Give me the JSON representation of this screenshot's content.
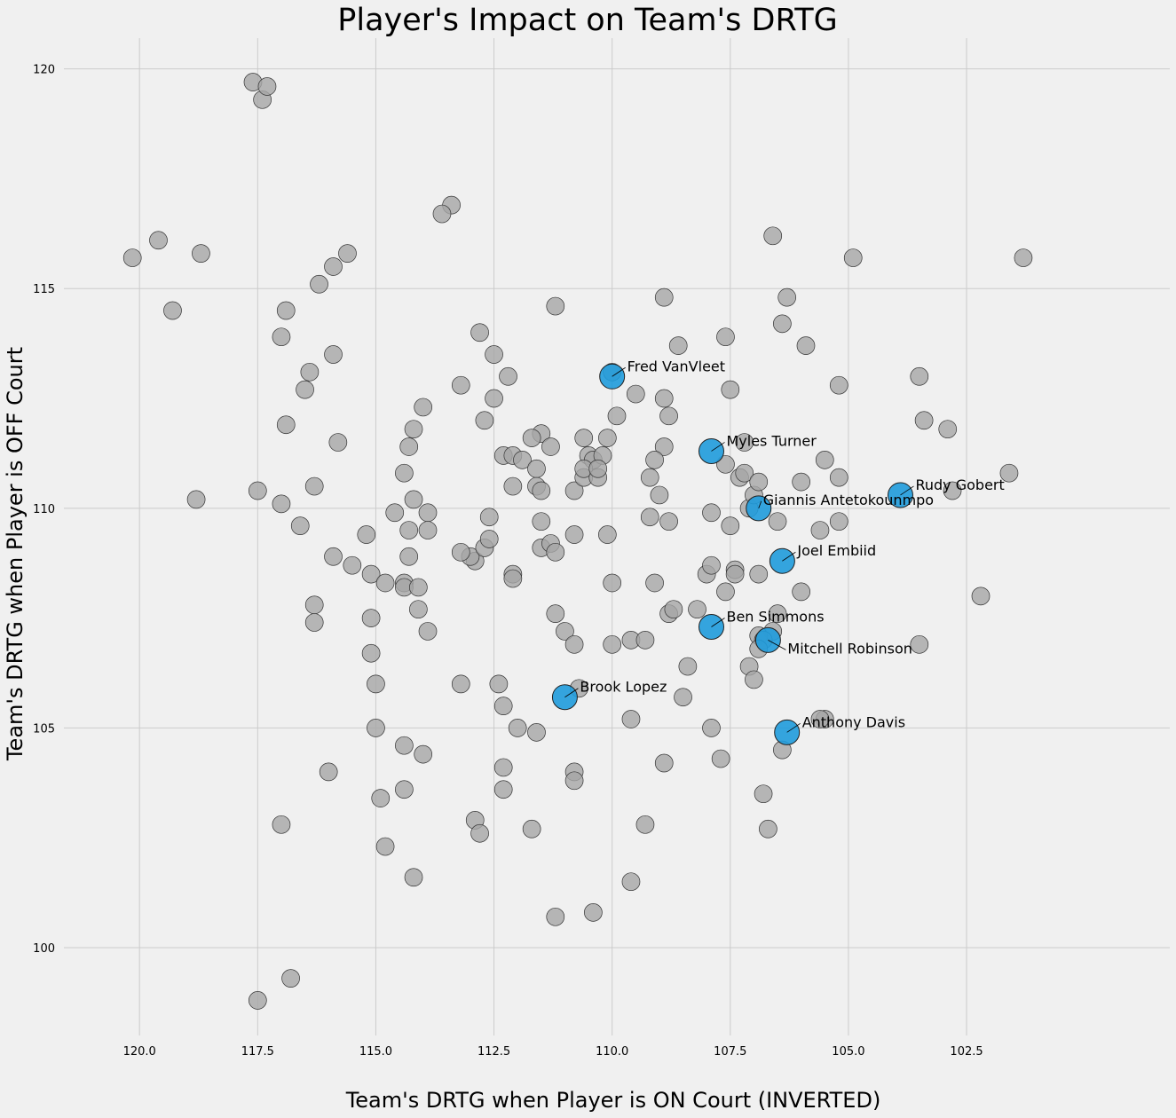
{
  "chart_data": {
    "type": "scatter",
    "title": "Player's Impact on Team's DRTG",
    "xlabel": "Team's DRTG when Player is ON Court (INVERTED)",
    "ylabel": "Team's DRTG when Player is OFF Court",
    "xlim": [
      121.6,
      98.2
    ],
    "ylim": [
      98.0,
      120.7
    ],
    "x_inverted": true,
    "grid": true,
    "xticks": [
      120.0,
      117.5,
      115.0,
      112.5,
      110.0,
      107.5,
      105.0,
      102.5
    ],
    "xtick_labels": [
      "120.0",
      "117.5",
      "115.0",
      "112.5",
      "110.0",
      "107.5",
      "105.0",
      "102.5"
    ],
    "yticks": [
      100,
      105,
      110,
      115,
      120
    ],
    "ytick_labels": [
      "100",
      "105",
      "110",
      "115",
      "120"
    ],
    "colors": {
      "other_players": "#a6a6a6",
      "highlighted_players": "#1f9bdc",
      "background": "#f0f0f0"
    },
    "series": [
      {
        "points": [
          [
            120.15,
            115.7
          ],
          [
            119.6,
            116.1
          ],
          [
            119.3,
            114.5
          ],
          [
            118.7,
            115.8
          ],
          [
            118.8,
            110.2
          ],
          [
            117.6,
            119.7
          ],
          [
            117.4,
            119.3
          ],
          [
            117.3,
            119.6
          ],
          [
            117.0,
            113.9
          ],
          [
            116.9,
            114.5
          ],
          [
            117.0,
            110.1
          ],
          [
            116.9,
            111.9
          ],
          [
            117.5,
            110.4
          ],
          [
            116.5,
            112.7
          ],
          [
            116.4,
            113.1
          ],
          [
            116.2,
            115.1
          ],
          [
            115.9,
            113.5
          ],
          [
            115.9,
            115.5
          ],
          [
            115.6,
            115.8
          ],
          [
            115.8,
            111.5
          ],
          [
            116.3,
            110.5
          ],
          [
            116.6,
            109.6
          ],
          [
            116.3,
            107.8
          ],
          [
            116.3,
            107.4
          ],
          [
            115.9,
            108.9
          ],
          [
            115.5,
            108.7
          ],
          [
            115.2,
            109.4
          ],
          [
            115.1,
            108.5
          ],
          [
            115.1,
            107.5
          ],
          [
            115.1,
            106.7
          ],
          [
            115.0,
            106.0
          ],
          [
            115.0,
            105.0
          ],
          [
            114.8,
            108.3
          ],
          [
            114.6,
            109.9
          ],
          [
            114.4,
            110.8
          ],
          [
            114.3,
            111.4
          ],
          [
            114.2,
            110.2
          ],
          [
            114.2,
            111.8
          ],
          [
            114.0,
            112.3
          ],
          [
            114.4,
            108.3
          ],
          [
            114.4,
            108.2
          ],
          [
            114.3,
            109.5
          ],
          [
            114.3,
            108.9
          ],
          [
            114.1,
            108.2
          ],
          [
            114.1,
            107.7
          ],
          [
            113.9,
            109.9
          ],
          [
            113.9,
            109.5
          ],
          [
            113.9,
            107.2
          ],
          [
            114.0,
            104.4
          ],
          [
            114.4,
            104.6
          ],
          [
            114.4,
            103.6
          ],
          [
            114.2,
            101.6
          ],
          [
            114.8,
            102.3
          ],
          [
            114.9,
            103.4
          ],
          [
            116.0,
            104.0
          ],
          [
            117.0,
            102.8
          ],
          [
            117.5,
            98.8
          ],
          [
            116.8,
            99.3
          ],
          [
            113.4,
            116.9
          ],
          [
            113.6,
            116.7
          ],
          [
            112.8,
            114.0
          ],
          [
            112.5,
            113.5
          ],
          [
            112.5,
            112.5
          ],
          [
            113.2,
            112.8
          ],
          [
            112.7,
            112.0
          ],
          [
            112.2,
            113.0
          ],
          [
            112.3,
            111.2
          ],
          [
            112.1,
            111.2
          ],
          [
            111.9,
            111.1
          ],
          [
            111.5,
            111.7
          ],
          [
            111.7,
            111.6
          ],
          [
            111.6,
            110.9
          ],
          [
            111.6,
            110.5
          ],
          [
            111.3,
            111.4
          ],
          [
            111.2,
            114.6
          ],
          [
            110.8,
            110.4
          ],
          [
            110.6,
            111.6
          ],
          [
            110.5,
            111.2
          ],
          [
            110.4,
            111.1
          ],
          [
            110.6,
            110.7
          ],
          [
            110.6,
            110.9
          ],
          [
            111.5,
            110.4
          ],
          [
            112.1,
            110.5
          ],
          [
            111.5,
            109.7
          ],
          [
            112.6,
            109.8
          ],
          [
            112.9,
            108.8
          ],
          [
            113.0,
            108.9
          ],
          [
            113.2,
            109.0
          ],
          [
            112.7,
            109.1
          ],
          [
            112.6,
            109.3
          ],
          [
            111.5,
            109.1
          ],
          [
            111.3,
            109.2
          ],
          [
            111.2,
            109.0
          ],
          [
            112.1,
            108.5
          ],
          [
            112.1,
            108.4
          ],
          [
            110.8,
            109.4
          ],
          [
            110.0,
            108.3
          ],
          [
            111.0,
            107.2
          ],
          [
            111.2,
            107.6
          ],
          [
            110.8,
            106.9
          ],
          [
            112.4,
            106.0
          ],
          [
            112.3,
            105.5
          ],
          [
            113.2,
            106.0
          ],
          [
            112.0,
            105.0
          ],
          [
            111.6,
            104.9
          ],
          [
            112.3,
            104.1
          ],
          [
            112.3,
            103.6
          ],
          [
            112.9,
            102.9
          ],
          [
            112.8,
            102.6
          ],
          [
            111.7,
            102.7
          ],
          [
            110.8,
            104.0
          ],
          [
            110.8,
            103.8
          ],
          [
            110.7,
            105.9
          ],
          [
            109.6,
            105.2
          ],
          [
            108.9,
            104.2
          ],
          [
            108.5,
            105.7
          ],
          [
            108.4,
            106.4
          ],
          [
            107.9,
            105.0
          ],
          [
            107.7,
            104.3
          ],
          [
            109.3,
            102.8
          ],
          [
            109.6,
            101.5
          ],
          [
            110.4,
            100.8
          ],
          [
            111.2,
            100.7
          ],
          [
            109.6,
            107.0
          ],
          [
            109.3,
            107.0
          ],
          [
            109.1,
            108.3
          ],
          [
            108.8,
            107.6
          ],
          [
            108.7,
            107.7
          ],
          [
            108.2,
            107.7
          ],
          [
            108.0,
            108.5
          ],
          [
            107.9,
            108.7
          ],
          [
            107.6,
            108.1
          ],
          [
            107.4,
            108.6
          ],
          [
            107.4,
            108.5
          ],
          [
            106.9,
            108.5
          ],
          [
            106.5,
            107.6
          ],
          [
            106.6,
            107.2
          ],
          [
            106.9,
            107.1
          ],
          [
            106.8,
            107.0
          ],
          [
            106.9,
            106.8
          ],
          [
            107.1,
            106.4
          ],
          [
            107.0,
            106.1
          ],
          [
            106.8,
            103.5
          ],
          [
            106.7,
            102.7
          ],
          [
            106.4,
            104.5
          ],
          [
            105.5,
            105.2
          ],
          [
            105.6,
            105.2
          ],
          [
            109.2,
            109.8
          ],
          [
            109.0,
            110.3
          ],
          [
            108.8,
            109.7
          ],
          [
            107.9,
            109.9
          ],
          [
            107.5,
            109.6
          ],
          [
            107.3,
            110.7
          ],
          [
            107.2,
            110.8
          ],
          [
            107.1,
            110.0
          ],
          [
            107.0,
            110.3
          ],
          [
            106.9,
            110.6
          ],
          [
            106.5,
            109.7
          ],
          [
            106.0,
            110.6
          ],
          [
            105.6,
            109.5
          ],
          [
            105.2,
            109.7
          ],
          [
            105.2,
            110.7
          ],
          [
            105.5,
            111.1
          ],
          [
            106.0,
            108.1
          ],
          [
            107.2,
            111.5
          ],
          [
            107.6,
            111.0
          ],
          [
            107.5,
            112.7
          ],
          [
            107.6,
            113.9
          ],
          [
            108.6,
            113.7
          ],
          [
            108.9,
            112.5
          ],
          [
            108.8,
            112.1
          ],
          [
            108.9,
            111.4
          ],
          [
            109.1,
            111.1
          ],
          [
            109.5,
            112.6
          ],
          [
            109.9,
            112.1
          ],
          [
            110.1,
            111.6
          ],
          [
            110.2,
            111.2
          ],
          [
            110.3,
            110.7
          ],
          [
            110.3,
            110.9
          ],
          [
            110.1,
            109.4
          ],
          [
            109.2,
            110.7
          ],
          [
            108.9,
            114.8
          ],
          [
            106.6,
            116.2
          ],
          [
            106.3,
            114.8
          ],
          [
            106.4,
            114.2
          ],
          [
            105.2,
            112.8
          ],
          [
            105.9,
            113.7
          ],
          [
            104.9,
            115.7
          ],
          [
            103.5,
            113.0
          ],
          [
            103.4,
            112.0
          ],
          [
            102.9,
            111.8
          ],
          [
            102.8,
            110.4
          ],
          [
            101.6,
            110.8
          ],
          [
            101.3,
            115.7
          ],
          [
            102.2,
            108.0
          ],
          [
            103.5,
            106.9
          ],
          [
            110.0,
            106.9
          ],
          [
            110.0,
            113.1
          ]
        ]
      },
      {
        "points": [
          [
            110.0,
            113.0
          ],
          [
            107.9,
            111.3
          ],
          [
            103.9,
            110.3
          ],
          [
            106.9,
            110.0
          ],
          [
            106.4,
            108.8
          ],
          [
            107.9,
            107.3
          ],
          [
            106.7,
            107.0
          ],
          [
            111.0,
            105.7
          ],
          [
            106.3,
            104.9
          ]
        ],
        "labels": [
          "Fred VanVleet",
          "Myles Turner",
          "Rudy Gobert",
          "Giannis Antetokounmpo",
          "Joel Embiid",
          "Ben Simmons",
          "Mitchell Robinson",
          "Brook Lopez",
          "Anthony Davis"
        ]
      }
    ]
  }
}
